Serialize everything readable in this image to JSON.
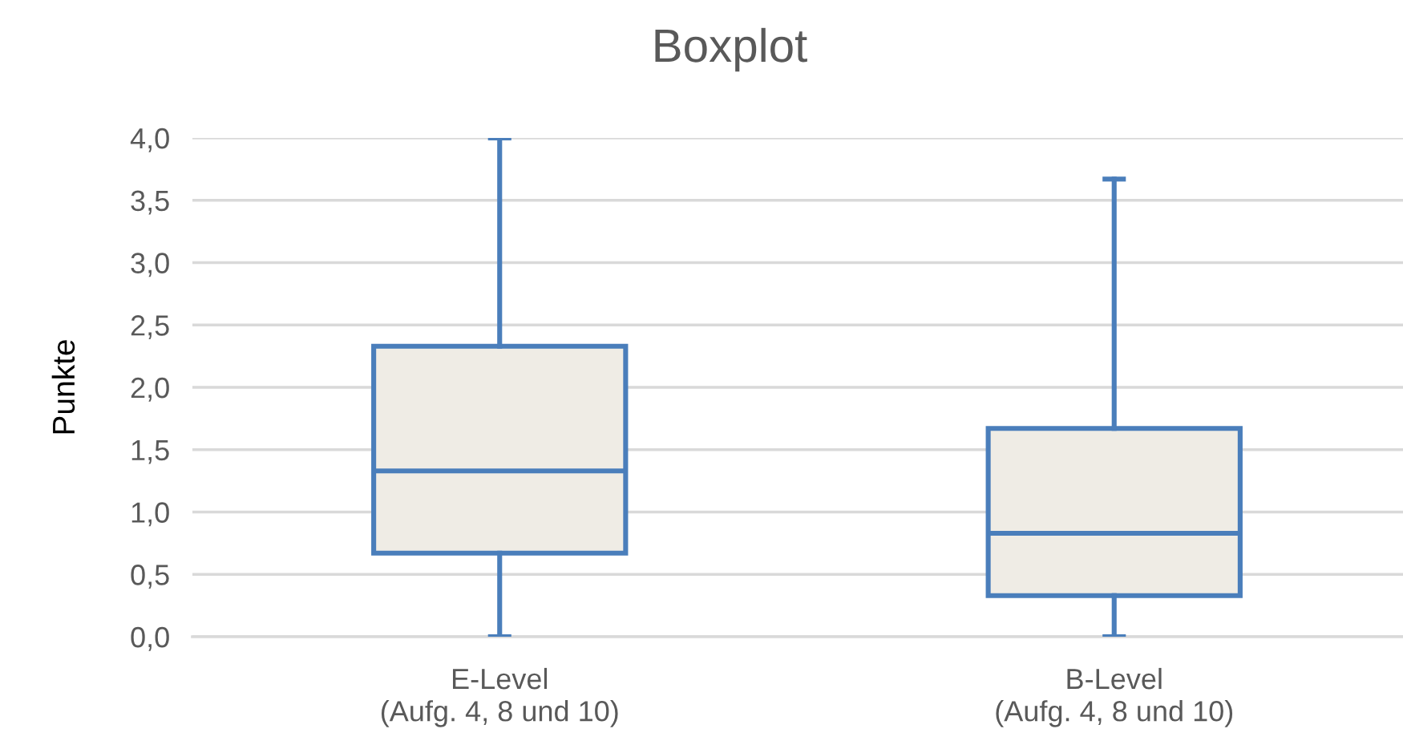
{
  "chart_data": {
    "type": "box",
    "title": "Boxplot",
    "ylabel": "Punkte",
    "categories": [
      "E-Level\n(Aufg. 4, 8 und 10)",
      "B-Level\n(Aufg. 4, 8 und 10)"
    ],
    "boxes": [
      {
        "low": 0,
        "q1": 0.67,
        "median": 1.33,
        "q3": 2.33,
        "high": 4.0
      },
      {
        "low": 0,
        "q1": 0.33,
        "median": 0.83,
        "q3": 1.67,
        "high": 3.67
      }
    ],
    "color": "#4a7ebb",
    "ylim": [
      0,
      4.0
    ],
    "yticks": [
      {
        "value": 0,
        "label": "0,0"
      },
      {
        "value": 0.5,
        "label": "0,5"
      },
      {
        "value": 1.0,
        "label": "1,0"
      },
      {
        "value": 1.5,
        "label": "1,5"
      },
      {
        "value": 2.0,
        "label": "2,0"
      },
      {
        "value": 2.5,
        "label": "2,5"
      },
      {
        "value": 3.0,
        "label": "3,0"
      },
      {
        "value": 3.5,
        "label": "3,5"
      },
      {
        "value": 4.0,
        "label": "4,0"
      }
    ],
    "grid": "y",
    "legend": false
  }
}
